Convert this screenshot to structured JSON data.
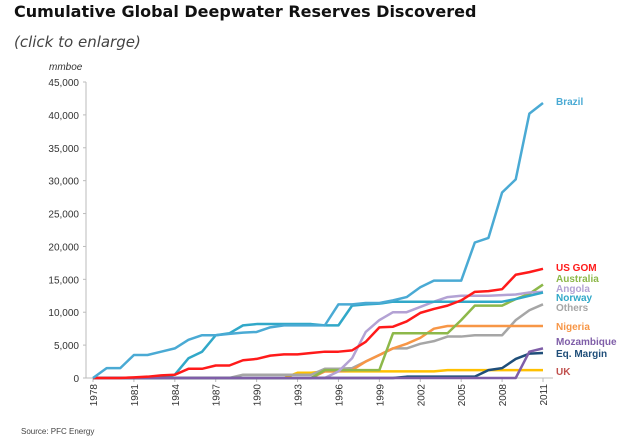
{
  "header": {
    "title": "Cumulative Global Deepwater Reserves Discovered",
    "subtitle": "(click to enlarge)"
  },
  "chart_data": {
    "type": "line",
    "title": "",
    "ylabel": "mmboe",
    "xlabel": "",
    "ylim": [
      0,
      45000
    ],
    "xlim": [
      1978,
      2011
    ],
    "y_ticks": [
      "0",
      "5,000",
      "10,000",
      "15,000",
      "20,000",
      "25,000",
      "30,000",
      "35,000",
      "40,000",
      "45,000"
    ],
    "x_ticks": [
      "1978",
      "1981",
      "1984",
      "1987",
      "1990",
      "1993",
      "1996",
      "1999",
      "2002",
      "2005",
      "2008",
      "2011"
    ],
    "grid": false,
    "legend": "right, inline labels at line ends",
    "source": "Source: PFC Energy",
    "x": [
      1978,
      1979,
      1980,
      1981,
      1982,
      1983,
      1984,
      1985,
      1986,
      1987,
      1988,
      1989,
      1990,
      1991,
      1992,
      1993,
      1994,
      1995,
      1996,
      1997,
      1998,
      1999,
      2000,
      2001,
      2002,
      2003,
      2004,
      2005,
      2006,
      2007,
      2008,
      2009,
      2010,
      2011
    ],
    "series": [
      {
        "name": "UK",
        "color": "#ffc000",
        "label_color": "#c0504d",
        "values": [
          0,
          0,
          0,
          0,
          0,
          0,
          0,
          0,
          0,
          0,
          0,
          0,
          0,
          0,
          0,
          800,
          800,
          1000,
          1000,
          1000,
          1000,
          1000,
          1000,
          1000,
          1000,
          1000,
          1200,
          1200,
          1200,
          1200,
          1200,
          1200,
          1200,
          1200
        ]
      },
      {
        "name": "Others",
        "color": "#a6a6a6",
        "label_color": "#a6a6a6",
        "values": [
          0,
          0,
          0,
          0,
          0,
          0,
          0,
          0,
          0,
          0,
          0,
          500,
          500,
          500,
          500,
          500,
          500,
          1400,
          1400,
          1500,
          2500,
          3500,
          4500,
          4500,
          5200,
          5600,
          6300,
          6300,
          6500,
          6500,
          6500,
          8800,
          10300,
          11200
        ]
      },
      {
        "name": "Nigeria",
        "color": "#f79646",
        "label_color": "#f79646",
        "values": [
          0,
          0,
          0,
          0,
          0,
          0,
          0,
          0,
          0,
          0,
          0,
          0,
          0,
          0,
          0,
          0,
          0,
          1000,
          1000,
          1200,
          2500,
          3500,
          4500,
          5200,
          6100,
          7500,
          7900,
          7900,
          7900,
          7900,
          7900,
          7900,
          7900,
          7900
        ]
      },
      {
        "name": "Australia",
        "color": "#8db84a",
        "label_color": "#8db84a",
        "values": [
          0,
          0,
          0,
          0,
          0,
          0,
          0,
          0,
          0,
          0,
          0,
          0,
          0,
          0,
          0,
          0,
          0,
          1200,
          1200,
          1200,
          1200,
          1200,
          6800,
          6800,
          6800,
          6800,
          6800,
          8800,
          11000,
          11000,
          11000,
          12000,
          12800,
          14200
        ]
      },
      {
        "name": "Angola",
        "color": "#b3a2d4",
        "label_color": "#b3a2d4",
        "values": [
          0,
          0,
          0,
          0,
          0,
          0,
          0,
          0,
          0,
          0,
          0,
          0,
          0,
          0,
          0,
          0,
          0,
          0,
          1000,
          3000,
          7000,
          8800,
          10000,
          10000,
          10800,
          11600,
          12300,
          12500,
          12500,
          12500,
          12600,
          12700,
          13000,
          13100
        ]
      },
      {
        "name": "Norway",
        "color": "#31a8c8",
        "label_color": "#31a8c8",
        "values": [
          0,
          0,
          0,
          0,
          0,
          0,
          500,
          3000,
          4000,
          6500,
          6800,
          8000,
          8200,
          8200,
          8200,
          8200,
          8200,
          8000,
          8000,
          11000,
          11200,
          11300,
          11600,
          11600,
          11600,
          11600,
          11600,
          11600,
          11600,
          11600,
          11600,
          12000,
          12500,
          13000
        ]
      },
      {
        "name": "Eq. Margin",
        "color": "#1f4e79",
        "label_color": "#1f4e79",
        "values": [
          0,
          0,
          0,
          0,
          0,
          0,
          0,
          0,
          0,
          0,
          0,
          0,
          0,
          0,
          0,
          0,
          0,
          0,
          0,
          0,
          0,
          0,
          0,
          200,
          200,
          200,
          200,
          200,
          200,
          1200,
          1500,
          2900,
          3700,
          3800
        ]
      },
      {
        "name": "Mozambique",
        "color": "#7f5ea8",
        "label_color": "#7f5ea8",
        "values": [
          0,
          0,
          0,
          0,
          0,
          0,
          0,
          0,
          0,
          0,
          0,
          0,
          0,
          0,
          0,
          0,
          0,
          0,
          0,
          0,
          0,
          0,
          0,
          0,
          0,
          0,
          0,
          0,
          0,
          0,
          0,
          0,
          4000,
          4500
        ]
      },
      {
        "name": "US GOM",
        "color": "#ff1a1a",
        "label_color": "#ff1a1a",
        "values": [
          0,
          0,
          0,
          100,
          200,
          400,
          500,
          1400,
          1400,
          1900,
          1900,
          2700,
          2900,
          3400,
          3600,
          3600,
          3800,
          4000,
          4000,
          4200,
          5500,
          7700,
          7800,
          8600,
          9900,
          10500,
          11000,
          11800,
          13100,
          13200,
          13500,
          15700,
          16100,
          16600
        ]
      },
      {
        "name": "Brazil",
        "color": "#4aaad4",
        "label_color": "#4aaad4",
        "values": [
          0,
          1500,
          1500,
          3500,
          3500,
          4000,
          4500,
          5800,
          6500,
          6500,
          6700,
          6900,
          7000,
          7700,
          8000,
          8000,
          8000,
          8000,
          11200,
          11200,
          11400,
          11400,
          11800,
          12300,
          13800,
          14800,
          14800,
          14800,
          20600,
          21300,
          28200,
          30200,
          40200,
          41800
        ]
      }
    ]
  }
}
